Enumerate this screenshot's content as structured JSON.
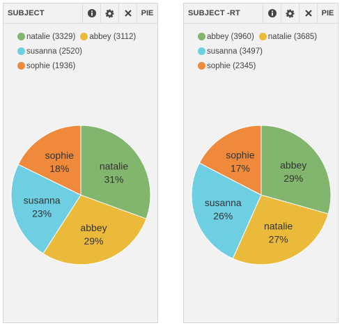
{
  "colors": {
    "green": "#82b56d",
    "yellow": "#ebba3a",
    "cyan": "#6ecfe2",
    "orange": "#ef8a3c"
  },
  "panels": [
    {
      "title": "SUBJECT",
      "toolbar": {
        "info_icon": "info-icon",
        "settings_icon": "gear-icon",
        "close_icon": "close-icon",
        "type_label": "PIE"
      },
      "chart_data": {
        "type": "pie",
        "title": "SUBJECT",
        "slices": [
          {
            "label": "natalie",
            "value": 3329,
            "percent": "31%",
            "color": "#82b56d"
          },
          {
            "label": "abbey",
            "value": 3112,
            "percent": "29%",
            "color": "#ebba3a"
          },
          {
            "label": "susanna",
            "value": 2520,
            "percent": "23%",
            "color": "#6ecfe2"
          },
          {
            "label": "sophie",
            "value": 1936,
            "percent": "18%",
            "color": "#ef8a3c"
          }
        ],
        "legend": [
          [
            {
              "text": "natalie (3329)",
              "color": "#82b56d"
            },
            {
              "text": "abbey (3112)",
              "color": "#ebba3a"
            }
          ],
          [
            {
              "text": "susanna (2520)",
              "color": "#6ecfe2"
            }
          ],
          [
            {
              "text": "sophie (1936)",
              "color": "#ef8a3c"
            }
          ]
        ],
        "legend_position": "top"
      }
    },
    {
      "title": "SUBJECT -RT",
      "toolbar": {
        "info_icon": "info-icon",
        "settings_icon": "gear-icon",
        "close_icon": "close-icon",
        "type_label": "PIE"
      },
      "chart_data": {
        "type": "pie",
        "title": "SUBJECT -RT",
        "slices": [
          {
            "label": "abbey",
            "value": 3960,
            "percent": "29%",
            "color": "#82b56d"
          },
          {
            "label": "natalie",
            "value": 3685,
            "percent": "27%",
            "color": "#ebba3a"
          },
          {
            "label": "susanna",
            "value": 3497,
            "percent": "26%",
            "color": "#6ecfe2"
          },
          {
            "label": "sophie",
            "value": 2345,
            "percent": "17%",
            "color": "#ef8a3c"
          }
        ],
        "legend": [
          [
            {
              "text": "abbey (3960)",
              "color": "#82b56d"
            },
            {
              "text": "natalie (3685)",
              "color": "#ebba3a"
            }
          ],
          [
            {
              "text": "susanna (3497)",
              "color": "#6ecfe2"
            }
          ],
          [
            {
              "text": "sophie (2345)",
              "color": "#ef8a3c"
            }
          ]
        ],
        "legend_position": "top"
      }
    }
  ]
}
